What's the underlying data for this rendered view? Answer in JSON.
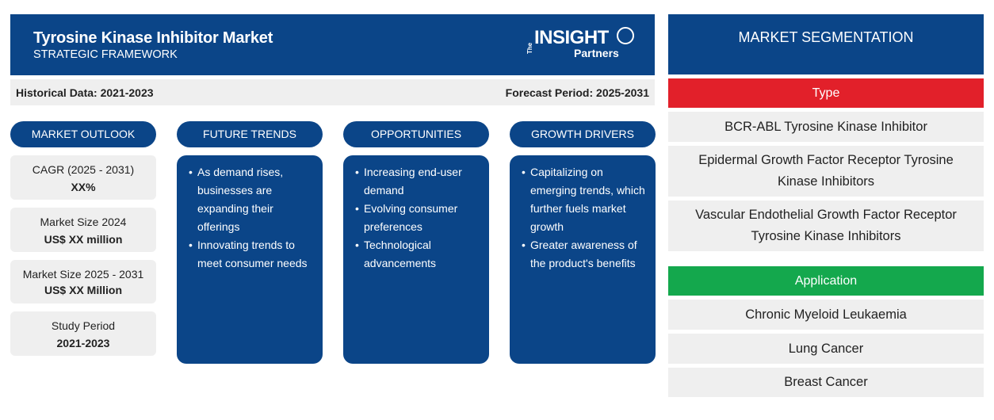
{
  "header": {
    "title": "Tyrosine Kinase Inhibitor Market",
    "subtitle": "STRATEGIC FRAMEWORK",
    "logo": {
      "the": "The",
      "insight": "INSIGHT",
      "partners": "Partners"
    }
  },
  "dates": {
    "historical": "Historical Data: 2021-2023",
    "forecast": "Forecast Period: 2025-2031"
  },
  "columns": {
    "outlook": "MARKET OUTLOOK",
    "trends": "FUTURE TRENDS",
    "opportunities": "OPPORTUNITIES",
    "drivers": "GROWTH DRIVERS"
  },
  "outlook": [
    {
      "label": "CAGR (2025 - 2031)",
      "value": "XX%"
    },
    {
      "label": "Market Size 2024",
      "value": "US$ XX million"
    },
    {
      "label": "Market Size 2025 - 2031",
      "value": "US$ XX Million"
    },
    {
      "label": "Study Period",
      "value": "2021-2023"
    }
  ],
  "trends": [
    "As demand rises, businesses are expanding their offerings",
    "Innovating trends to meet consumer needs"
  ],
  "opportunities": [
    "Increasing end-user demand",
    "Evolving consumer preferences",
    "Technological advancements"
  ],
  "drivers": [
    "Capitalizing on emerging trends, which further fuels market growth",
    "Greater awareness of the product's benefits"
  ],
  "segmentation": {
    "title": "MARKET SEGMENTATION",
    "type_label": "Type",
    "types": [
      "BCR-ABL Tyrosine Kinase Inhibitor",
      "Epidermal Growth Factor Receptor Tyrosine Kinase Inhibitors",
      "Vascular Endothelial Growth Factor Receptor Tyrosine Kinase Inhibitors"
    ],
    "application_label": "Application",
    "applications": [
      "Chronic Myeloid Leukaemia",
      "Lung Cancer",
      "Breast Cancer"
    ]
  },
  "colors": {
    "navy": "#0b4588",
    "red": "#e2202a",
    "green": "#14a84d",
    "panel": "#efefef"
  }
}
